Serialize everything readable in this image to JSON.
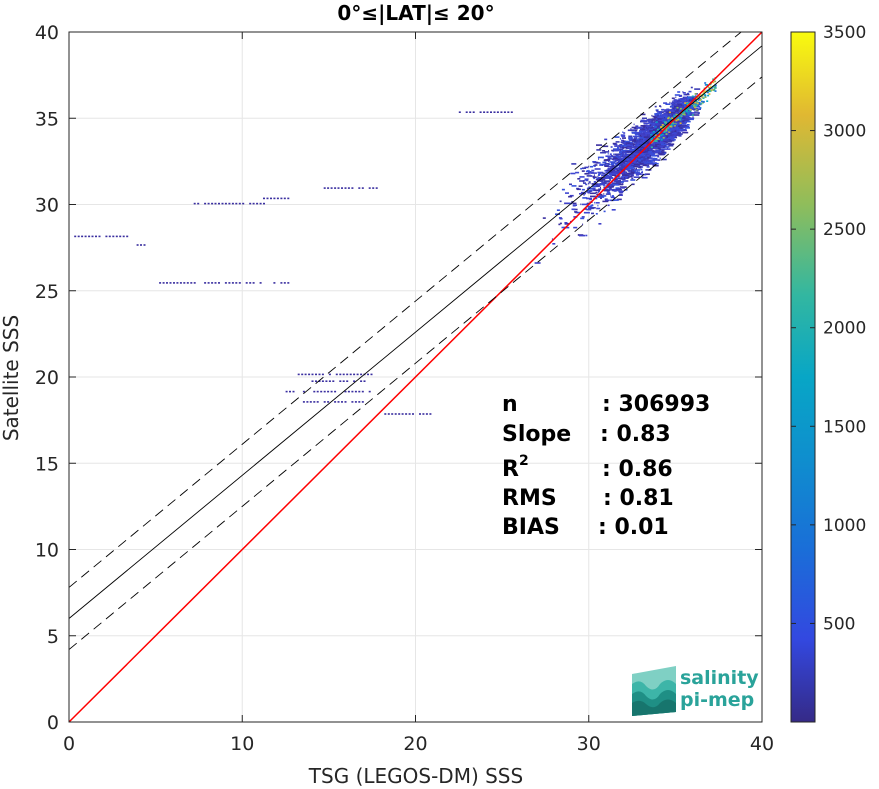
{
  "chart_data": {
    "type": "heatmap",
    "title": "0°≤|LAT|≤ 20°",
    "xlabel": "TSG (LEGOS-DM) SSS",
    "ylabel": "Satellite SSS",
    "xlim": [
      0,
      40
    ],
    "ylim": [
      0,
      40
    ],
    "xticks": [
      "0",
      "10",
      "20",
      "30",
      "40"
    ],
    "yticks": [
      "0",
      "5",
      "10",
      "15",
      "20",
      "25",
      "30",
      "35",
      "40"
    ],
    "grid": true,
    "colorbar": {
      "range": [
        0,
        3500
      ],
      "ticks": [
        "500",
        "1000",
        "1500",
        "2000",
        "2500",
        "3000",
        "3500"
      ],
      "colormap": "parula"
    },
    "lines": [
      {
        "kind": "one-to-one",
        "color": "#ff0000",
        "intercept": 0,
        "slope": 1
      },
      {
        "kind": "regression",
        "color": "#000000",
        "style": "solid",
        "intercept": 6.0,
        "slope": 0.83
      },
      {
        "kind": "regression-upper",
        "color": "#000000",
        "style": "dashed",
        "intercept": 7.8,
        "slope": 0.83
      },
      {
        "kind": "regression-lower",
        "color": "#000000",
        "style": "dashed",
        "intercept": 4.2,
        "slope": 0.83
      }
    ],
    "stats": [
      {
        "label": "n",
        "value": ": 306993"
      },
      {
        "label": "Slope",
        "value": ": 0.83"
      },
      {
        "label": "R",
        "sup": "2",
        "value": ": 0.86"
      },
      {
        "label": "RMS",
        "value": ": 0.81"
      },
      {
        "label": "BIAS",
        "value": ": 0.01"
      }
    ],
    "outlier_rows": [
      {
        "y": 28.2,
        "x": [
          0.3,
          3.5
        ]
      },
      {
        "y": 27.7,
        "x": [
          3.9,
          4.7
        ]
      },
      {
        "y": 30.1,
        "x": [
          7.0,
          11.5
        ]
      },
      {
        "y": 30.4,
        "x": [
          11.2,
          12.8
        ]
      },
      {
        "y": 25.5,
        "x": [
          5.2,
          12.7
        ]
      },
      {
        "y": 31.0,
        "x": [
          14.5,
          18.0
        ]
      },
      {
        "y": 20.2,
        "x": [
          13.0,
          17.5
        ]
      },
      {
        "y": 19.2,
        "x": [
          12.5,
          17.5
        ]
      },
      {
        "y": 19.8,
        "x": [
          14.0,
          17.0
        ]
      },
      {
        "y": 18.6,
        "x": [
          13.5,
          17.0
        ]
      },
      {
        "y": 17.9,
        "x": [
          18.2,
          20.8
        ]
      },
      {
        "y": 35.4,
        "x": [
          22.5,
          25.5
        ]
      }
    ]
  },
  "logo": {
    "line1": "salinity",
    "line2": "pi-mep"
  }
}
